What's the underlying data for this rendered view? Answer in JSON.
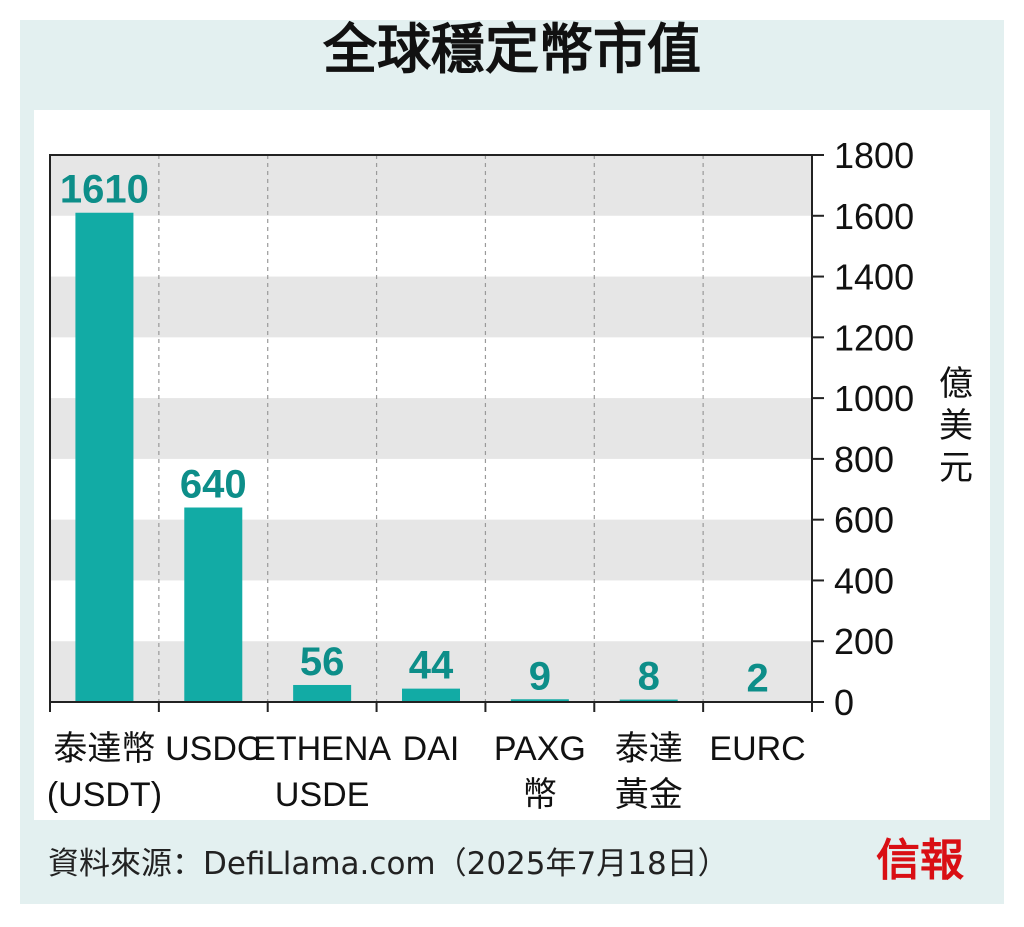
{
  "title": "全球穩定幣市值",
  "source": "資料來源：DefiLlama.com（2025年7月18日）",
  "brand": "信報",
  "colors": {
    "bar": "#12aba5",
    "label": "#0d8e89",
    "band": "#e6e6e6",
    "frame": "#e3f0f0",
    "brand": "#d90f14"
  },
  "chart_data": {
    "type": "bar",
    "title": "全球穩定幣市值",
    "ylabel": "億美元",
    "xlabel": "",
    "categories": [
      [
        "泰達幣",
        "(USDT)"
      ],
      [
        "USDC"
      ],
      [
        "ETHENA",
        "USDE"
      ],
      [
        "DAI"
      ],
      [
        "PAXG",
        "幣"
      ],
      [
        "泰達",
        "黃金"
      ],
      [
        "EURC"
      ]
    ],
    "values": [
      1610,
      640,
      56,
      44,
      9,
      8,
      2
    ],
    "data_labels": [
      "1610",
      "640",
      "56",
      "44",
      "9",
      "8",
      "2"
    ],
    "ylim": [
      0,
      1800
    ],
    "yticks": [
      0,
      200,
      400,
      600,
      800,
      1000,
      1200,
      1400,
      1600,
      1800
    ],
    "y_axis_side": "right",
    "alternating_bands": true
  }
}
